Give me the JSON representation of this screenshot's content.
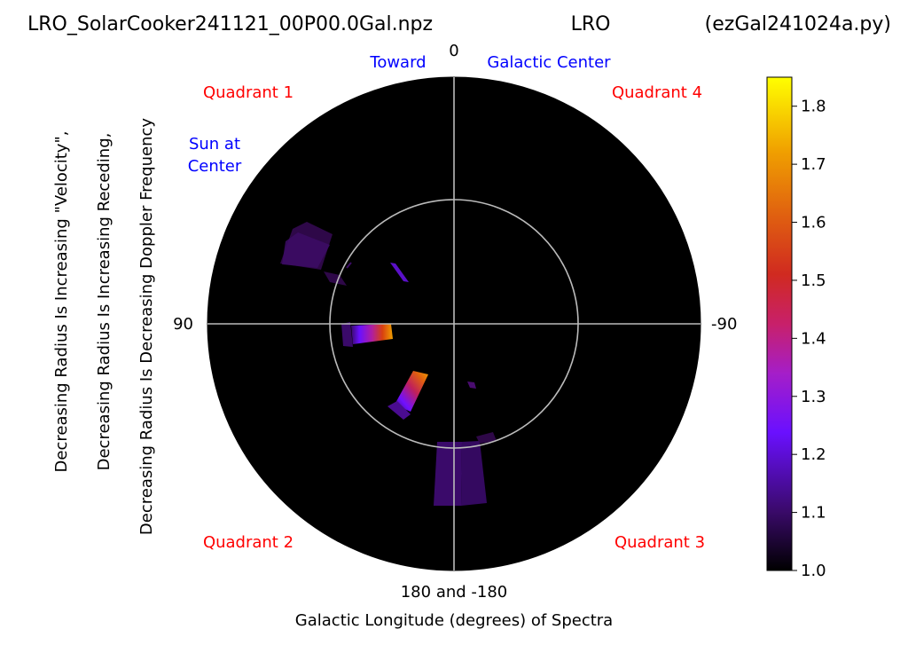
{
  "chart_data": {
    "type": "polar-heatmap",
    "title_left": "LRO_SolarCooker241121_00P00.0Gal.npz",
    "title_center": "LRO",
    "title_right": "(ezGal241024a.py)",
    "xlabel": "Galactic Longitude (degrees) of Spectra",
    "ylabel_lines": [
      "Decreasing Radius Is Increasing \"Velocity\",",
      "Decreasing Radius Is Increasing Receding,",
      "Decreasing Radius Is Decreasing Doppler Frequency"
    ],
    "angle_labels": {
      "top": "0",
      "left": "90",
      "right": "-90",
      "bottom": "180 and -180"
    },
    "annotations": {
      "toward": "Toward",
      "galactic_center": "Galactic Center",
      "sun_at_center_line1": "Sun at",
      "sun_at_center_line2": "Center",
      "quadrant1": "Quadrant 1",
      "quadrant2": "Quadrant 2",
      "quadrant3": "Quadrant 3",
      "quadrant4": "Quadrant 4"
    },
    "annotation_colors": {
      "blue": "#0000ff",
      "red": "#ff0000"
    },
    "background_color": "#000000",
    "grid": true,
    "colorbar": {
      "colormap": "gnuplot (black-purple-red-orange-yellow)",
      "range": [
        1.0,
        1.85
      ],
      "ticks": [
        "1.0",
        "1.1",
        "1.2",
        "1.3",
        "1.4",
        "1.5",
        "1.6",
        "1.7",
        "1.8"
      ],
      "tick_values": [
        1.0,
        1.1,
        1.2,
        1.3,
        1.4,
        1.5,
        1.6,
        1.7,
        1.8
      ]
    },
    "patches": [
      {
        "name": "q1-arc-outer",
        "lon_start": 60,
        "lon_end": 68,
        "value": 1.1
      },
      {
        "name": "q1-arc-inner",
        "lon_start": 58,
        "lon_end": 70,
        "value": 1.1
      },
      {
        "name": "q1-small-a",
        "lon_start": 52,
        "lon_end": 55,
        "value": 1.15
      },
      {
        "name": "q1-small-b",
        "lon_start": 44,
        "lon_end": 47,
        "value": 1.2
      },
      {
        "name": "q2-gradient",
        "lon_start": 92,
        "lon_end": 97,
        "value_min": 1.1,
        "value_max": 1.7
      },
      {
        "name": "q2-diagonal",
        "lon_start": 140,
        "lon_end": 148,
        "value_min": 1.2,
        "value_max": 1.7
      },
      {
        "name": "q3-small",
        "lon_start": 205,
        "lon_end": 207,
        "value": 1.05
      },
      {
        "name": "bottom-fan",
        "lon_start": 170,
        "lon_end": 195,
        "value": 1.15
      }
    ]
  }
}
